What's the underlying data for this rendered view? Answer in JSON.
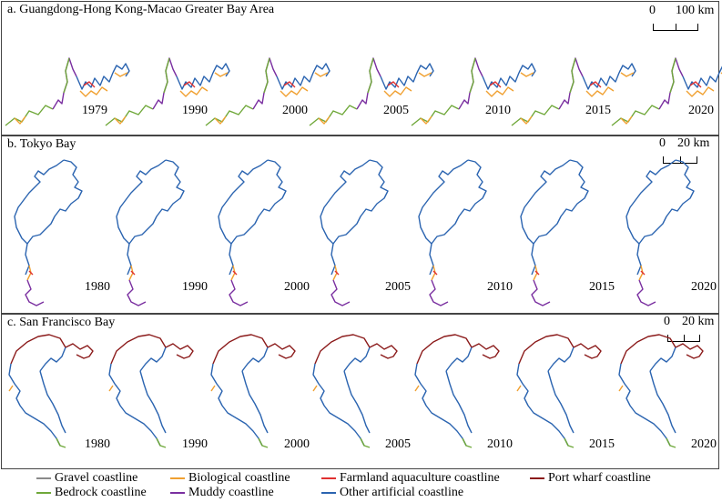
{
  "colors": {
    "gravel": "#8a8a8a",
    "bedrock": "#6fa83a",
    "biological": "#f0a030",
    "muddy": "#7a2fa0",
    "farmland": "#e03030",
    "other_artificial": "#2b64b0",
    "port_wharf": "#8b1a1a"
  },
  "panels": [
    {
      "title": "a. Guangdong-Hong Kong-Macao Greater Bay Area",
      "scale": {
        "zero": "0",
        "end": "100 km"
      },
      "years": [
        "1979",
        "1990",
        "2000",
        "2005",
        "2010",
        "2015",
        "2020"
      ]
    },
    {
      "title": "b. Tokyo Bay",
      "scale": {
        "zero": "0",
        "end": "20 km"
      },
      "years": [
        "1980",
        "1990",
        "2000",
        "2005",
        "2010",
        "2015",
        "2020"
      ]
    },
    {
      "title": "c. San Francisco Bay",
      "scale": {
        "zero": "0",
        "end": "20 km"
      },
      "years": [
        "1980",
        "1990",
        "2000",
        "2005",
        "2010",
        "2015",
        "2020"
      ]
    }
  ],
  "legend": [
    {
      "label": "Gravel coastline",
      "color": "#8a8a8a"
    },
    {
      "label": "Biological coastline",
      "color": "#f0a030"
    },
    {
      "label": "Farmland aquaculture coastline",
      "color": "#e03030"
    },
    {
      "label": "Port wharf coastline",
      "color": "#8b1a1a"
    },
    {
      "label": "Bedrock coastline",
      "color": "#6fa83a"
    },
    {
      "label": "Muddy coastline",
      "color": "#7a2fa0"
    },
    {
      "label": "Other artificial coastline",
      "color": "#2b64b0"
    }
  ]
}
